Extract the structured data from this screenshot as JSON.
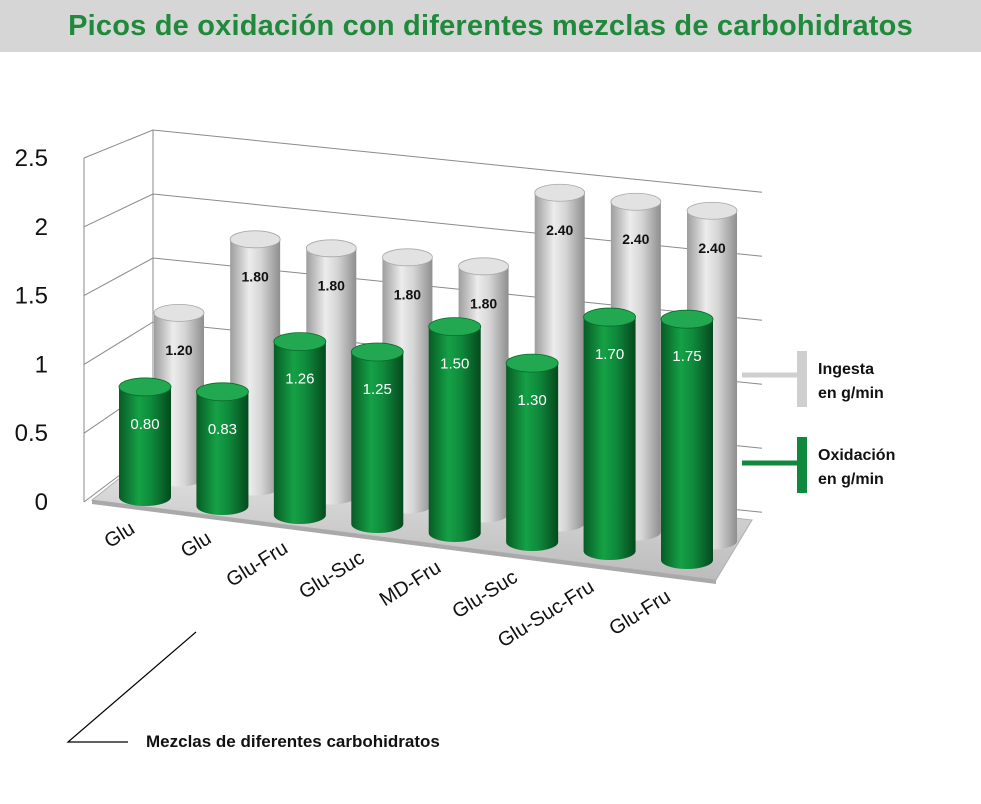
{
  "title": "Picos de oxidación con diferentes mezclas de carbohidratos",
  "colors": {
    "green": "#0f8a3c",
    "gray": "#cfcfcf",
    "title_green": "#1f8a3b",
    "title_bar": "#d6d6d6"
  },
  "chart_data": {
    "type": "bar",
    "title": "Picos de oxidación con diferentes mezclas de carbohidratos",
    "xlabel": "Mezclas de diferentes carbohidratos",
    "ylabel": "",
    "ylim": [
      0,
      2.5
    ],
    "y_ticks": [
      "0",
      "0.5",
      "1",
      "1.5",
      "2",
      "2.5"
    ],
    "grid": true,
    "legend_position": "right",
    "categories": [
      "Glu",
      "Glu",
      "Glu-Fru",
      "Glu-Suc",
      "MD-Fru",
      "Glu-Suc",
      "Glu-Suc-Fru",
      "Glu-Fru"
    ],
    "series": [
      {
        "name_line1": "Ingesta",
        "name_line2": "en g/min",
        "color": "#cfcfcf",
        "values": [
          1.2,
          1.8,
          1.8,
          1.8,
          1.8,
          2.4,
          2.4,
          2.4
        ],
        "labels": [
          "1.20",
          "1.80",
          "1.80",
          "1.80",
          "1.80",
          "2.40",
          "2.40",
          "2.40"
        ]
      },
      {
        "name_line1": "Oxidación",
        "name_line2": "en g/min",
        "color": "#0f8a3c",
        "values": [
          0.8,
          0.83,
          1.26,
          1.25,
          1.5,
          1.3,
          1.7,
          1.75
        ],
        "labels": [
          "0.80",
          "0.83",
          "1.26",
          "1.25",
          "1.50",
          "1.30",
          "1.70",
          "1.75"
        ]
      }
    ]
  }
}
